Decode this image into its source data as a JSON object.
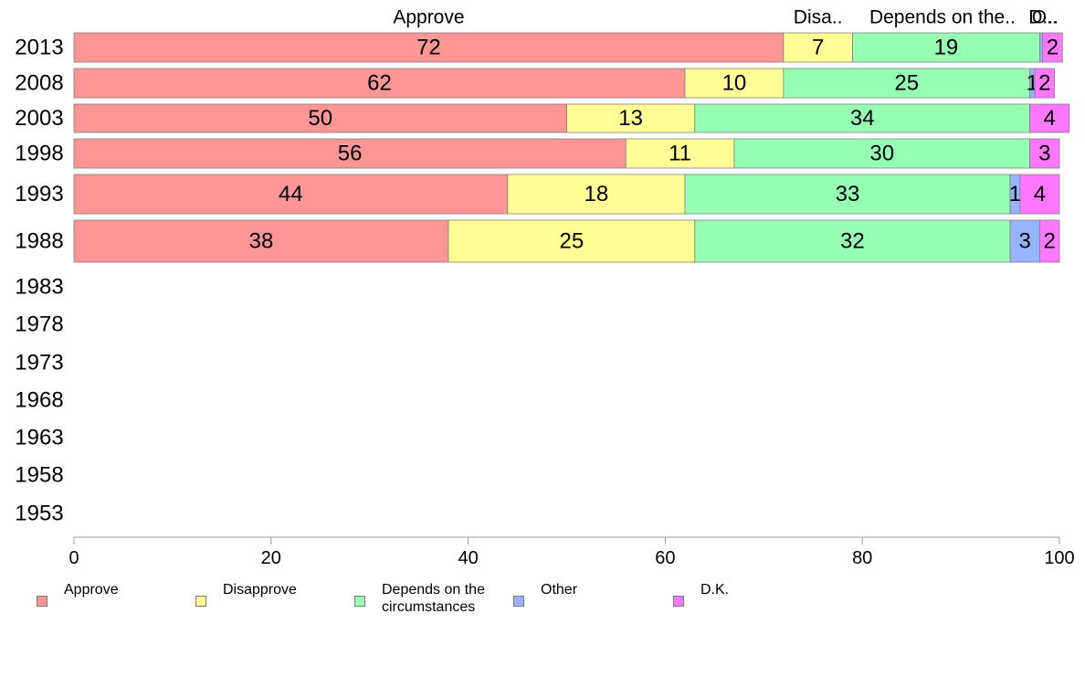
{
  "chart_data": {
    "type": "bar",
    "orientation": "horizontal",
    "stacked": true,
    "categories": [
      "2013",
      "2008",
      "2003",
      "1998",
      "1993",
      "1988",
      "1983",
      "1978",
      "1973",
      "1968",
      "1963",
      "1958",
      "1953"
    ],
    "series": [
      {
        "name": "Approve",
        "color": "#ff9696",
        "values": [
          72,
          62,
          50,
          56,
          44,
          38,
          null,
          null,
          null,
          null,
          null,
          null,
          null
        ]
      },
      {
        "name": "Disapprove",
        "color": "#ffff96",
        "values": [
          7,
          10,
          13,
          11,
          18,
          25,
          null,
          null,
          null,
          null,
          null,
          null,
          null
        ]
      },
      {
        "name": "Depends on the circumstances",
        "color": "#96ffb4",
        "values": [
          19,
          25,
          34,
          30,
          33,
          32,
          null,
          null,
          null,
          null,
          null,
          null,
          null
        ]
      },
      {
        "name": "Other",
        "color": "#96b4ff",
        "values": [
          0.3,
          0.5,
          0,
          0,
          1,
          3,
          null,
          null,
          null,
          null,
          null,
          null,
          null
        ]
      },
      {
        "name": "D.K.",
        "color": "#ff78ff",
        "values": [
          2,
          2,
          4,
          3,
          4,
          2,
          null,
          null,
          null,
          null,
          null,
          null,
          null
        ]
      }
    ],
    "data_labels": [
      [
        "72",
        "7",
        "19",
        "",
        "2"
      ],
      [
        "62",
        "10",
        "25",
        "1",
        "2"
      ],
      [
        "50",
        "13",
        "34",
        "",
        "4"
      ],
      [
        "56",
        "11",
        "30",
        "",
        "3"
      ],
      [
        "44",
        "18",
        "33",
        "1",
        "4"
      ],
      [
        "38",
        "25",
        "32",
        "3",
        "2"
      ]
    ],
    "top_labels": [
      "Approve",
      "Disa..",
      "Depends on the..",
      "O..",
      "D..."
    ],
    "x_ticks": [
      "0",
      "20",
      "40",
      "60",
      "80",
      "100"
    ],
    "xlim": [
      0,
      100
    ],
    "title": "",
    "xlabel": "",
    "ylabel": "",
    "grid": false,
    "legend_position": "bottom"
  },
  "legend": [
    {
      "label": "Approve",
      "color": "#ff9696"
    },
    {
      "label": "Disapprove",
      "color": "#ffff96"
    },
    {
      "label": "Depends on the\ncircumstances",
      "color": "#96ffb4"
    },
    {
      "label": "Other",
      "color": "#96b4ff"
    },
    {
      "label": "D.K.",
      "color": "#ff78ff"
    }
  ]
}
